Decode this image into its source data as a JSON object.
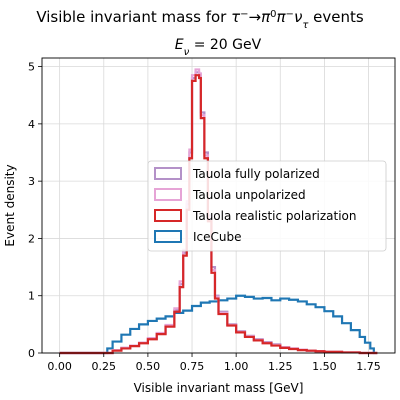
{
  "chart_data": {
    "type": "line",
    "title_parts": {
      "prefix": "Visible invariant mass for ",
      "tau": "τ",
      "minus": "−",
      "arrow": "→",
      "pi": "π",
      "zero": "0",
      "nu": "ν",
      "tau_sub": "τ",
      "suffix": " events"
    },
    "subtitle_parts": {
      "E": "E",
      "nu_sub": "ν",
      "rest": " = 20 GeV"
    },
    "xlabel": "Visible invariant mass [GeV]",
    "ylabel": "Event density",
    "xlim": [
      -0.1,
      1.9
    ],
    "ylim": [
      0,
      5.15
    ],
    "xticks": [
      "0.00",
      "0.25",
      "0.50",
      "0.75",
      "1.00",
      "1.25",
      "1.50",
      "1.75"
    ],
    "yticks": [
      "0",
      "1",
      "2",
      "3",
      "4",
      "5"
    ],
    "grid": true,
    "legend_position": "center-right",
    "series": [
      {
        "name": "Tauola fully polarized",
        "color": "#b491c8",
        "points": [
          [
            0.0,
            0.0
          ],
          [
            0.25,
            0.0
          ],
          [
            0.3,
            0.05
          ],
          [
            0.35,
            0.09
          ],
          [
            0.4,
            0.13
          ],
          [
            0.45,
            0.18
          ],
          [
            0.5,
            0.25
          ],
          [
            0.55,
            0.34
          ],
          [
            0.6,
            0.48
          ],
          [
            0.65,
            0.75
          ],
          [
            0.68,
            1.2
          ],
          [
            0.7,
            1.75
          ],
          [
            0.72,
            2.6
          ],
          [
            0.735,
            3.5
          ],
          [
            0.75,
            4.8
          ],
          [
            0.77,
            4.9
          ],
          [
            0.79,
            4.85
          ],
          [
            0.8,
            4.2
          ],
          [
            0.82,
            3.5
          ],
          [
            0.84,
            2.4
          ],
          [
            0.86,
            1.5
          ],
          [
            0.88,
            1.0
          ],
          [
            0.9,
            0.72
          ],
          [
            0.95,
            0.5
          ],
          [
            1.0,
            0.38
          ],
          [
            1.05,
            0.3
          ],
          [
            1.1,
            0.24
          ],
          [
            1.15,
            0.19
          ],
          [
            1.2,
            0.15
          ],
          [
            1.25,
            0.1
          ],
          [
            1.3,
            0.08
          ],
          [
            1.35,
            0.06
          ],
          [
            1.4,
            0.04
          ],
          [
            1.45,
            0.03
          ],
          [
            1.5,
            0.02
          ],
          [
            1.6,
            0.01
          ],
          [
            1.7,
            0.0
          ],
          [
            1.8,
            0.0
          ]
        ]
      },
      {
        "name": "Tauola unpolarized",
        "color": "#e6a4d6",
        "points": [
          [
            0.0,
            0.0
          ],
          [
            0.25,
            0.0
          ],
          [
            0.3,
            0.05
          ],
          [
            0.35,
            0.09
          ],
          [
            0.4,
            0.13
          ],
          [
            0.45,
            0.18
          ],
          [
            0.5,
            0.26
          ],
          [
            0.55,
            0.35
          ],
          [
            0.6,
            0.49
          ],
          [
            0.65,
            0.78
          ],
          [
            0.68,
            1.25
          ],
          [
            0.7,
            1.8
          ],
          [
            0.72,
            2.65
          ],
          [
            0.735,
            3.55
          ],
          [
            0.75,
            4.85
          ],
          [
            0.77,
            4.95
          ],
          [
            0.79,
            4.88
          ],
          [
            0.8,
            4.15
          ],
          [
            0.82,
            3.45
          ],
          [
            0.84,
            2.35
          ],
          [
            0.86,
            1.45
          ],
          [
            0.88,
            0.98
          ],
          [
            0.9,
            0.7
          ],
          [
            0.95,
            0.49
          ],
          [
            1.0,
            0.37
          ],
          [
            1.05,
            0.29
          ],
          [
            1.1,
            0.23
          ],
          [
            1.15,
            0.18
          ],
          [
            1.2,
            0.14
          ],
          [
            1.25,
            0.1
          ],
          [
            1.3,
            0.08
          ],
          [
            1.35,
            0.06
          ],
          [
            1.4,
            0.04
          ],
          [
            1.45,
            0.03
          ],
          [
            1.5,
            0.02
          ],
          [
            1.6,
            0.01
          ],
          [
            1.7,
            0.0
          ],
          [
            1.8,
            0.0
          ]
        ]
      },
      {
        "name": "Tauola realistic polarization",
        "color": "#d62728",
        "points": [
          [
            0.0,
            0.0
          ],
          [
            0.25,
            0.0
          ],
          [
            0.3,
            0.04
          ],
          [
            0.35,
            0.08
          ],
          [
            0.4,
            0.12
          ],
          [
            0.45,
            0.17
          ],
          [
            0.5,
            0.24
          ],
          [
            0.55,
            0.33
          ],
          [
            0.6,
            0.46
          ],
          [
            0.65,
            0.72
          ],
          [
            0.68,
            1.15
          ],
          [
            0.7,
            1.7
          ],
          [
            0.72,
            2.5
          ],
          [
            0.735,
            3.4
          ],
          [
            0.75,
            4.75
          ],
          [
            0.77,
            4.85
          ],
          [
            0.79,
            4.8
          ],
          [
            0.8,
            4.1
          ],
          [
            0.82,
            3.4
          ],
          [
            0.84,
            2.3
          ],
          [
            0.86,
            1.4
          ],
          [
            0.88,
            0.95
          ],
          [
            0.9,
            0.68
          ],
          [
            0.95,
            0.48
          ],
          [
            1.0,
            0.36
          ],
          [
            1.05,
            0.28
          ],
          [
            1.1,
            0.22
          ],
          [
            1.15,
            0.17
          ],
          [
            1.2,
            0.13
          ],
          [
            1.25,
            0.09
          ],
          [
            1.3,
            0.07
          ],
          [
            1.35,
            0.05
          ],
          [
            1.4,
            0.04
          ],
          [
            1.45,
            0.03
          ],
          [
            1.5,
            0.02
          ],
          [
            1.6,
            0.01
          ],
          [
            1.7,
            0.0
          ],
          [
            1.8,
            0.0
          ]
        ]
      },
      {
        "name": "IceCube",
        "color": "#1f77b4",
        "points": [
          [
            0.0,
            0.0
          ],
          [
            0.25,
            0.0
          ],
          [
            0.27,
            0.08
          ],
          [
            0.3,
            0.2
          ],
          [
            0.35,
            0.32
          ],
          [
            0.4,
            0.42
          ],
          [
            0.45,
            0.5
          ],
          [
            0.5,
            0.56
          ],
          [
            0.55,
            0.6
          ],
          [
            0.6,
            0.64
          ],
          [
            0.65,
            0.7
          ],
          [
            0.7,
            0.74
          ],
          [
            0.75,
            0.82
          ],
          [
            0.8,
            0.88
          ],
          [
            0.85,
            0.9
          ],
          [
            0.9,
            0.92
          ],
          [
            0.95,
            0.95
          ],
          [
            1.0,
            1.0
          ],
          [
            1.05,
            0.98
          ],
          [
            1.1,
            0.95
          ],
          [
            1.15,
            0.96
          ],
          [
            1.2,
            0.92
          ],
          [
            1.25,
            0.95
          ],
          [
            1.3,
            0.93
          ],
          [
            1.35,
            0.9
          ],
          [
            1.4,
            0.85
          ],
          [
            1.45,
            0.8
          ],
          [
            1.5,
            0.73
          ],
          [
            1.55,
            0.64
          ],
          [
            1.6,
            0.52
          ],
          [
            1.65,
            0.4
          ],
          [
            1.7,
            0.28
          ],
          [
            1.73,
            0.18
          ],
          [
            1.76,
            0.08
          ],
          [
            1.78,
            0.0
          ],
          [
            1.8,
            0.0
          ]
        ]
      }
    ]
  }
}
